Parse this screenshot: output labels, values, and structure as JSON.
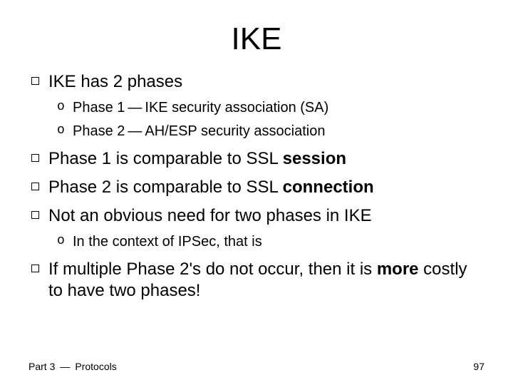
{
  "title": "IKE",
  "bullets": {
    "b0": {
      "text": "IKE has 2 phases",
      "sub": {
        "s0_pre": "Phase 1",
        "s0_post": "IKE security association (SA)",
        "s1_pre": "Phase 2",
        "s1_post": "AH/ESP security association"
      }
    },
    "b1_pre": "Phase 1 is comparable to SSL ",
    "b1_bold": "session",
    "b2_pre": "Phase 2 is comparable to SSL ",
    "b2_bold": "connection",
    "b3": {
      "text": "Not an obvious need for two phases in IKE",
      "sub": {
        "s0": "In the context of IPSec, that is"
      }
    },
    "b4_pre": "If multiple Phase 2's do not occur, then it is ",
    "b4_bold": "more",
    "b4_post": " costly to have two phases!"
  },
  "footer": {
    "left_pre": "Part 3",
    "left_post": "Protocols",
    "page": "97"
  }
}
